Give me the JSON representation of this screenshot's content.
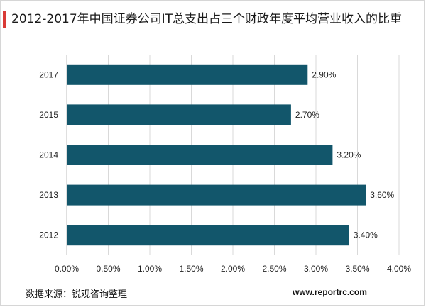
{
  "colors": {
    "bar": "#12566b",
    "accent": "#d93a36",
    "grid": "#d9d9d9"
  },
  "chart_data": {
    "type": "bar",
    "orientation": "horizontal",
    "title": "2012-2017年中国证券公司IT总支出占三个财政年度平均营业收入的比重",
    "categories": [
      "2017",
      "2015",
      "2014",
      "2013",
      "2012"
    ],
    "values": [
      2.9,
      2.7,
      3.2,
      3.6,
      3.4
    ],
    "data_labels": [
      "2.90%",
      "2.70%",
      "3.20%",
      "3.60%",
      "3.40%"
    ],
    "xlim": [
      0,
      4
    ],
    "x_ticks": [
      "0.00%",
      "0.50%",
      "1.00%",
      "1.50%",
      "2.00%",
      "2.50%",
      "3.00%",
      "3.50%",
      "4.00%"
    ],
    "grid": "vertical",
    "legend": "none"
  },
  "footer": {
    "source": "数据来源：锐观咨询整理",
    "website": "www.reportrc.com"
  }
}
